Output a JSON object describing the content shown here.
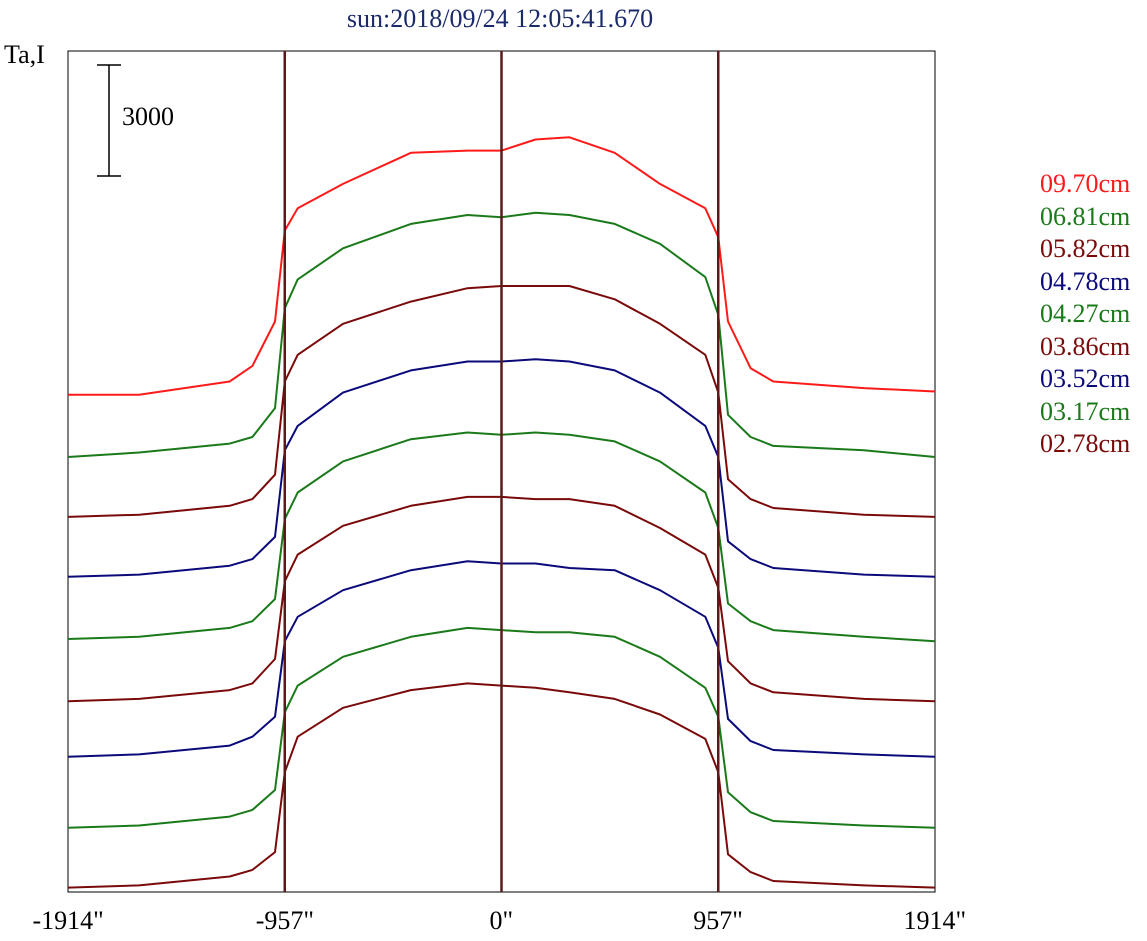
{
  "chart_data": {
    "type": "line",
    "title": "sun:2018/09/24 12:05:41.670",
    "ylabel": "Ta,I",
    "scale_bar_label": "3000",
    "scale_bar_value": 3000,
    "x_ticks": [
      "-1914\"",
      "-957\"",
      "0\"",
      "957\"",
      "1914\""
    ],
    "x_tick_values": [
      -1914,
      -957,
      0,
      957,
      1914
    ],
    "xlim": [
      -1914,
      1914
    ],
    "vertical_lines": [
      -957,
      0,
      957
    ],
    "colors": {
      "red": "#ff1a1a",
      "green": "#1a7a1a",
      "darkred": "#7a0a0a",
      "navy": "#0a0a7a",
      "vline": "#5a1a1a",
      "title": "#1b2a6b"
    },
    "series": [
      {
        "name": "09.70cm",
        "color": "#ff1a1a",
        "x": [
          -1914,
          -1600,
          -1200,
          -1100,
          -1000,
          -957,
          -900,
          -700,
          -400,
          -150,
          0,
          150,
          300,
          500,
          700,
          900,
          957,
          1000,
          1100,
          1200,
          1600,
          1914
        ],
        "y": [
          9600,
          9600,
          9960,
          10380,
          11580,
          14040,
          14640,
          15300,
          16140,
          16200,
          16200,
          16500,
          16560,
          16140,
          15300,
          14640,
          13860,
          11580,
          10320,
          9960,
          9780,
          9690
        ]
      },
      {
        "name": "06.81cm",
        "color": "#1a7a1a",
        "x": [
          -1914,
          -1600,
          -1200,
          -1100,
          -1000,
          -957,
          -900,
          -700,
          -400,
          -150,
          0,
          150,
          300,
          500,
          700,
          900,
          957,
          1000,
          1100,
          1200,
          1600,
          1914
        ],
        "y": [
          7920,
          8040,
          8280,
          8460,
          9240,
          11940,
          12720,
          13560,
          14220,
          14460,
          14400,
          14520,
          14460,
          14220,
          13680,
          12780,
          11760,
          9060,
          8460,
          8220,
          8100,
          7920
        ]
      },
      {
        "name": "05.82cm",
        "color": "#7a0a0a",
        "x": [
          -1914,
          -1600,
          -1200,
          -1100,
          -1000,
          -957,
          -900,
          -700,
          -400,
          -150,
          0,
          150,
          300,
          500,
          700,
          900,
          957,
          1000,
          1100,
          1200,
          1600,
          1914
        ],
        "y": [
          6300,
          6360,
          6600,
          6780,
          7440,
          9960,
          10680,
          11520,
          12120,
          12480,
          12540,
          12540,
          12540,
          12180,
          11520,
          10680,
          9660,
          7320,
          6780,
          6540,
          6360,
          6300
        ]
      },
      {
        "name": "04.78cm",
        "color": "#0a0a7a",
        "x": [
          -1914,
          -1600,
          -1200,
          -1100,
          -1000,
          -957,
          -900,
          -700,
          -400,
          -150,
          0,
          150,
          300,
          500,
          700,
          900,
          957,
          1000,
          1100,
          1200,
          1600,
          1914
        ],
        "y": [
          4680,
          4740,
          4980,
          5160,
          5760,
          8100,
          8760,
          9660,
          10260,
          10500,
          10500,
          10560,
          10500,
          10260,
          9660,
          8760,
          7920,
          5640,
          5160,
          4920,
          4740,
          4680
        ]
      },
      {
        "name": "04.27cm",
        "color": "#1a7a1a",
        "x": [
          -1914,
          -1600,
          -1200,
          -1100,
          -1000,
          -957,
          -900,
          -700,
          -400,
          -150,
          0,
          150,
          300,
          500,
          700,
          900,
          957,
          1000,
          1100,
          1200,
          1600,
          1914
        ],
        "y": [
          3000,
          3060,
          3300,
          3480,
          4080,
          6240,
          6960,
          7800,
          8400,
          8580,
          8520,
          8580,
          8520,
          8340,
          7800,
          6960,
          6000,
          3960,
          3480,
          3240,
          3060,
          2940
        ]
      },
      {
        "name": "03.86cm",
        "color": "#7a0a0a",
        "x": [
          -1914,
          -1600,
          -1200,
          -1100,
          -1000,
          -957,
          -900,
          -700,
          -400,
          -150,
          0,
          150,
          300,
          500,
          700,
          900,
          957,
          1000,
          1100,
          1200,
          1600,
          1914
        ],
        "y": [
          1320,
          1380,
          1620,
          1800,
          2460,
          4560,
          5280,
          6060,
          6600,
          6840,
          6840,
          6780,
          6780,
          6600,
          6000,
          5280,
          4380,
          2400,
          1800,
          1560,
          1380,
          1320
        ]
      },
      {
        "name": "03.52cm",
        "color": "#0a0a7a",
        "x": [
          -1914,
          -1600,
          -1200,
          -1100,
          -1000,
          -957,
          -900,
          -700,
          -400,
          -150,
          0,
          150,
          300,
          500,
          700,
          900,
          957,
          1000,
          1100,
          1200,
          1600,
          1914
        ],
        "y": [
          -180,
          -120,
          120,
          360,
          900,
          2940,
          3600,
          4320,
          4860,
          5100,
          5040,
          5040,
          4920,
          4860,
          4320,
          3600,
          2760,
          840,
          240,
          0,
          -120,
          -180
        ]
      },
      {
        "name": "03.17cm",
        "color": "#1a7a1a",
        "x": [
          -1914,
          -1600,
          -1200,
          -1100,
          -1000,
          -957,
          -900,
          -700,
          -400,
          -150,
          0,
          150,
          300,
          500,
          700,
          900,
          957,
          1000,
          1100,
          1200,
          1600,
          1914
        ],
        "y": [
          -2100,
          -2040,
          -1800,
          -1620,
          -1080,
          1020,
          1740,
          2520,
          3060,
          3300,
          3240,
          3180,
          3180,
          3060,
          2520,
          1680,
          900,
          -1140,
          -1680,
          -1920,
          -2040,
          -2100
        ]
      },
      {
        "name": "02.78cm",
        "color": "#7a0a0a",
        "x": [
          -1914,
          -1600,
          -1200,
          -1100,
          -1000,
          -957,
          -900,
          -700,
          -400,
          -150,
          0,
          150,
          300,
          500,
          700,
          900,
          957,
          1000,
          1100,
          1200,
          1600,
          1914
        ],
        "y": [
          -3720,
          -3660,
          -3420,
          -3240,
          -2760,
          -600,
          360,
          1140,
          1620,
          1800,
          1740,
          1680,
          1560,
          1380,
          960,
          300,
          -600,
          -2820,
          -3300,
          -3540,
          -3660,
          -3720
        ]
      }
    ]
  }
}
